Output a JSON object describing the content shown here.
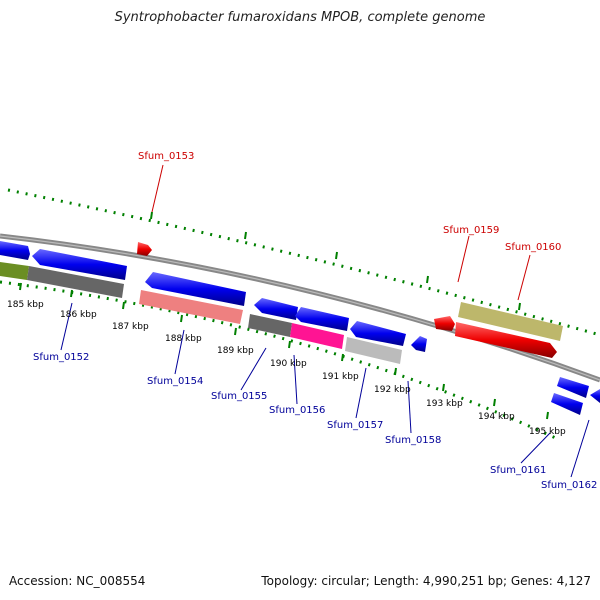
{
  "title": "Syntrophobacter fumaroxidans MPOB, complete genome",
  "accession": "Accession: NC_008554",
  "topology": "Topology: circular; Length: 4,990,251 bp; Genes: 4,127",
  "colors": {
    "blue": "#0000ee",
    "red": "#ee0000",
    "green": "#6b8e23",
    "darkgray": "#666666",
    "salmon": "#ee8080",
    "magenta": "#ff1493",
    "lightgray": "#bbbbbb",
    "khaki": "#bdb76b",
    "tickgreen": "#008000",
    "label_red": "#cc0000",
    "label_blue": "#000099"
  },
  "ticks": [
    "185 kbp",
    "186 kbp",
    "187 kbp",
    "188 kbp",
    "189 kbp",
    "190 kbp",
    "191 kbp",
    "192 kbp",
    "193 kbp",
    "194 kbp",
    "195 kbp"
  ],
  "labels": {
    "sfum_0152": "Sfum_0152",
    "sfum_0153": "Sfum_0153",
    "sfum_0154": "Sfum_0154",
    "sfum_0155": "Sfum_0155",
    "sfum_0156": "Sfum_0156",
    "sfum_0157": "Sfum_0157",
    "sfum_0158": "Sfum_0158",
    "sfum_0159": "Sfum_0159",
    "sfum_0160": "Sfum_0160",
    "sfum_0161": "Sfum_0161",
    "sfum_0162": "Sfum_0162"
  }
}
